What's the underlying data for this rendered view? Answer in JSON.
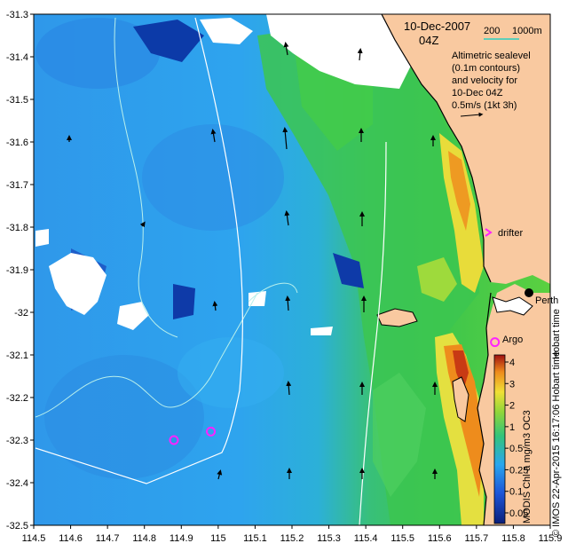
{
  "map": {
    "date_line1": "10-Dec-2007",
    "date_line2": "04Z",
    "depth_labels": [
      "200",
      "1000m"
    ],
    "notes": [
      "Altimetric sealevel",
      "(0.1m contours)",
      "and velocity for",
      "10-Dec 04Z",
      "0.5m/s (1kt 3h)"
    ],
    "places": {
      "perth": "Perth",
      "argo": "Argo",
      "drifter": "drifter",
      "hobart_tail": "Hobart time"
    },
    "colorbar": {
      "title": "MODIS Chl-a mg/m3 OC3",
      "ticks": [
        "4",
        "3",
        "2",
        "1",
        "0.5",
        "0.25",
        "0.1",
        "0.05"
      ],
      "stamp": "© IMOS 22-Apr-2015 16:17:06 Hobart time"
    },
    "colors": {
      "land": "#f9c9a0",
      "cloud": "#ffffff",
      "ocean_blue": "#2aa0ee",
      "deep_blue": "#0e4fc2",
      "green": "#38c24a",
      "yellow": "#e8dc3a",
      "orange": "#e88a1a",
      "contour": "#b8f0ec",
      "argo": "#ff22ff"
    },
    "x_ticks": [
      "114.5",
      "114.6",
      "114.7",
      "114.8",
      "114.9",
      "115",
      "115.1",
      "115.2",
      "115.3",
      "115.4",
      "115.5",
      "115.6",
      "115.7",
      "115.8",
      "115.9"
    ],
    "y_ticks": [
      "-31.3",
      "-31.4",
      "-31.5",
      "-31.6",
      "-31.7",
      "-31.8",
      "-31.9",
      "-32",
      "-32.1",
      "-32.2",
      "-32.3",
      "-32.4",
      "-32.5"
    ],
    "argo_floats": [
      {
        "lon": 114.88,
        "lat": -32.3
      },
      {
        "lon": 114.98,
        "lat": -32.28
      },
      {
        "lon": 115.75,
        "lat": -32.07
      }
    ]
  }
}
